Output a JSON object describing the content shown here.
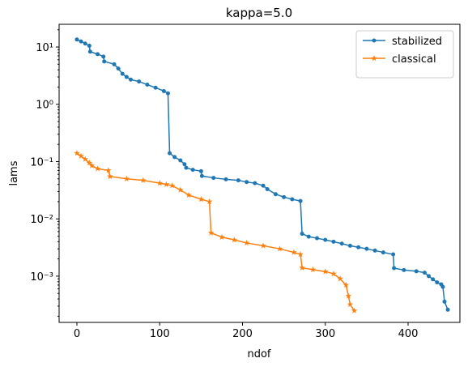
{
  "chart_data": {
    "type": "line",
    "title": "kappa=5.0",
    "x_label": "ndof",
    "y_label": "lams",
    "log_y": true,
    "legend": "upper right",
    "xlim": [
      -21.5,
      462.6
    ],
    "ylim": [
      0.000156,
      24.9
    ],
    "xticks": [
      0,
      100,
      200,
      300,
      400
    ],
    "yticks": [
      {
        "value": 0.001,
        "label": "10⁻³"
      },
      {
        "value": 0.01,
        "label": "10⁻²"
      },
      {
        "value": 0.1,
        "label": "10⁻¹"
      },
      {
        "value": 1,
        "label": "10⁰"
      },
      {
        "value": 10,
        "label": "10¹"
      }
    ],
    "series": [
      {
        "name": "stabilized",
        "color": "#1f77b4",
        "marker": "o",
        "x": [
          0,
          5,
          10,
          15,
          16,
          25,
          32,
          33,
          45,
          50,
          55,
          60,
          65,
          75,
          85,
          95,
          105,
          110,
          112,
          118,
          125,
          130,
          132,
          140,
          150,
          151,
          165,
          180,
          195,
          205,
          215,
          225,
          230,
          240,
          250,
          260,
          270,
          272,
          280,
          290,
          300,
          310,
          320,
          330,
          340,
          350,
          360,
          370,
          382,
          383,
          395,
          410,
          420,
          425,
          430,
          435,
          440,
          442,
          444,
          448
        ],
        "values": [
          13.5,
          12.5,
          11.5,
          10.5,
          8.3,
          7.5,
          6.8,
          5.6,
          5.0,
          4.2,
          3.4,
          3.0,
          2.7,
          2.5,
          2.2,
          1.95,
          1.7,
          1.55,
          0.14,
          0.12,
          0.105,
          0.09,
          0.078,
          0.072,
          0.068,
          0.056,
          0.052,
          0.049,
          0.047,
          0.044,
          0.042,
          0.038,
          0.033,
          0.027,
          0.024,
          0.022,
          0.0205,
          0.0055,
          0.0049,
          0.0046,
          0.0043,
          0.004,
          0.0037,
          0.0034,
          0.0032,
          0.003,
          0.0028,
          0.0026,
          0.0024,
          0.00138,
          0.00128,
          0.00122,
          0.00115,
          0.001,
          0.00088,
          0.00078,
          0.00072,
          0.00065,
          0.00036,
          0.00026
        ]
      },
      {
        "name": "classical",
        "color": "#ff7f0e",
        "marker": "*",
        "x": [
          0,
          5,
          10,
          15,
          18,
          25,
          38,
          40,
          60,
          80,
          100,
          108,
          115,
          125,
          135,
          150,
          160,
          162,
          175,
          190,
          205,
          225,
          245,
          262,
          270,
          272,
          285,
          300,
          310,
          318,
          325,
          328,
          330,
          335
        ],
        "values": [
          0.14,
          0.125,
          0.11,
          0.095,
          0.085,
          0.075,
          0.07,
          0.055,
          0.05,
          0.047,
          0.042,
          0.04,
          0.038,
          0.032,
          0.026,
          0.022,
          0.02,
          0.0057,
          0.0048,
          0.0043,
          0.0038,
          0.0034,
          0.003,
          0.0026,
          0.0024,
          0.0014,
          0.0013,
          0.0012,
          0.0011,
          0.0009,
          0.0007,
          0.00045,
          0.00032,
          0.00025
        ]
      }
    ]
  }
}
